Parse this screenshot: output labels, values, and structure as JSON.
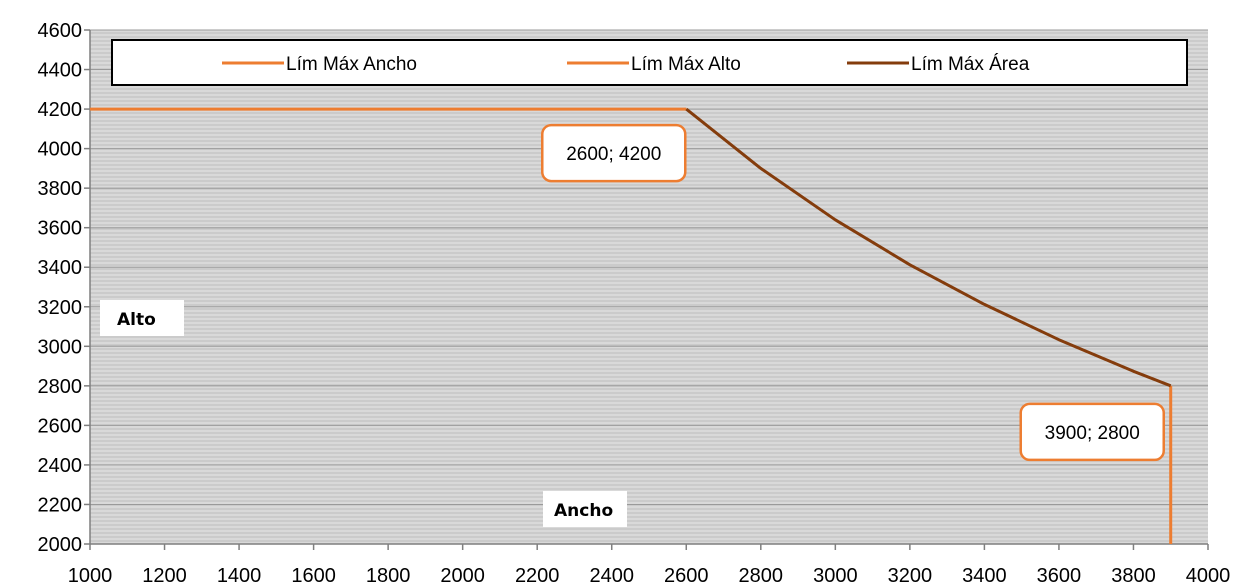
{
  "chart_data": {
    "type": "line",
    "xlabel": "Ancho",
    "ylabel": "Alto",
    "xlim": [
      1000,
      4000
    ],
    "ylim": [
      2000,
      4600
    ],
    "x_ticks": [
      1000,
      1200,
      1400,
      1600,
      1800,
      2000,
      2200,
      2400,
      2600,
      2800,
      3000,
      3200,
      3400,
      3600,
      3800,
      4000
    ],
    "y_ticks": [
      2000,
      2200,
      2400,
      2600,
      2800,
      3000,
      3200,
      3400,
      3600,
      3800,
      4000,
      4200,
      4400,
      4600
    ],
    "grid": "horizontal",
    "legend_position": "top",
    "series": [
      {
        "name": "Lím Máx Ancho",
        "color": "#ED7D31",
        "x": [
          3900,
          3900
        ],
        "y": [
          2000,
          2800
        ]
      },
      {
        "name": "Lím Máx Alto",
        "color": "#ED7D31",
        "x": [
          1000,
          2600
        ],
        "y": [
          4200,
          4200
        ]
      },
      {
        "name": "Lím Máx Área",
        "color": "#843C0C",
        "x": [
          2600,
          2800,
          3000,
          3200,
          3400,
          3600,
          3800,
          3900
        ],
        "y": [
          4200,
          3900,
          3640,
          3412.5,
          3211.8,
          3033.3,
          2873.7,
          2800
        ]
      }
    ],
    "annotations": [
      {
        "text": "2600; 4200",
        "x": 2600,
        "y": 4200
      },
      {
        "text": "3900; 2800",
        "x": 3900,
        "y": 2800
      }
    ]
  }
}
